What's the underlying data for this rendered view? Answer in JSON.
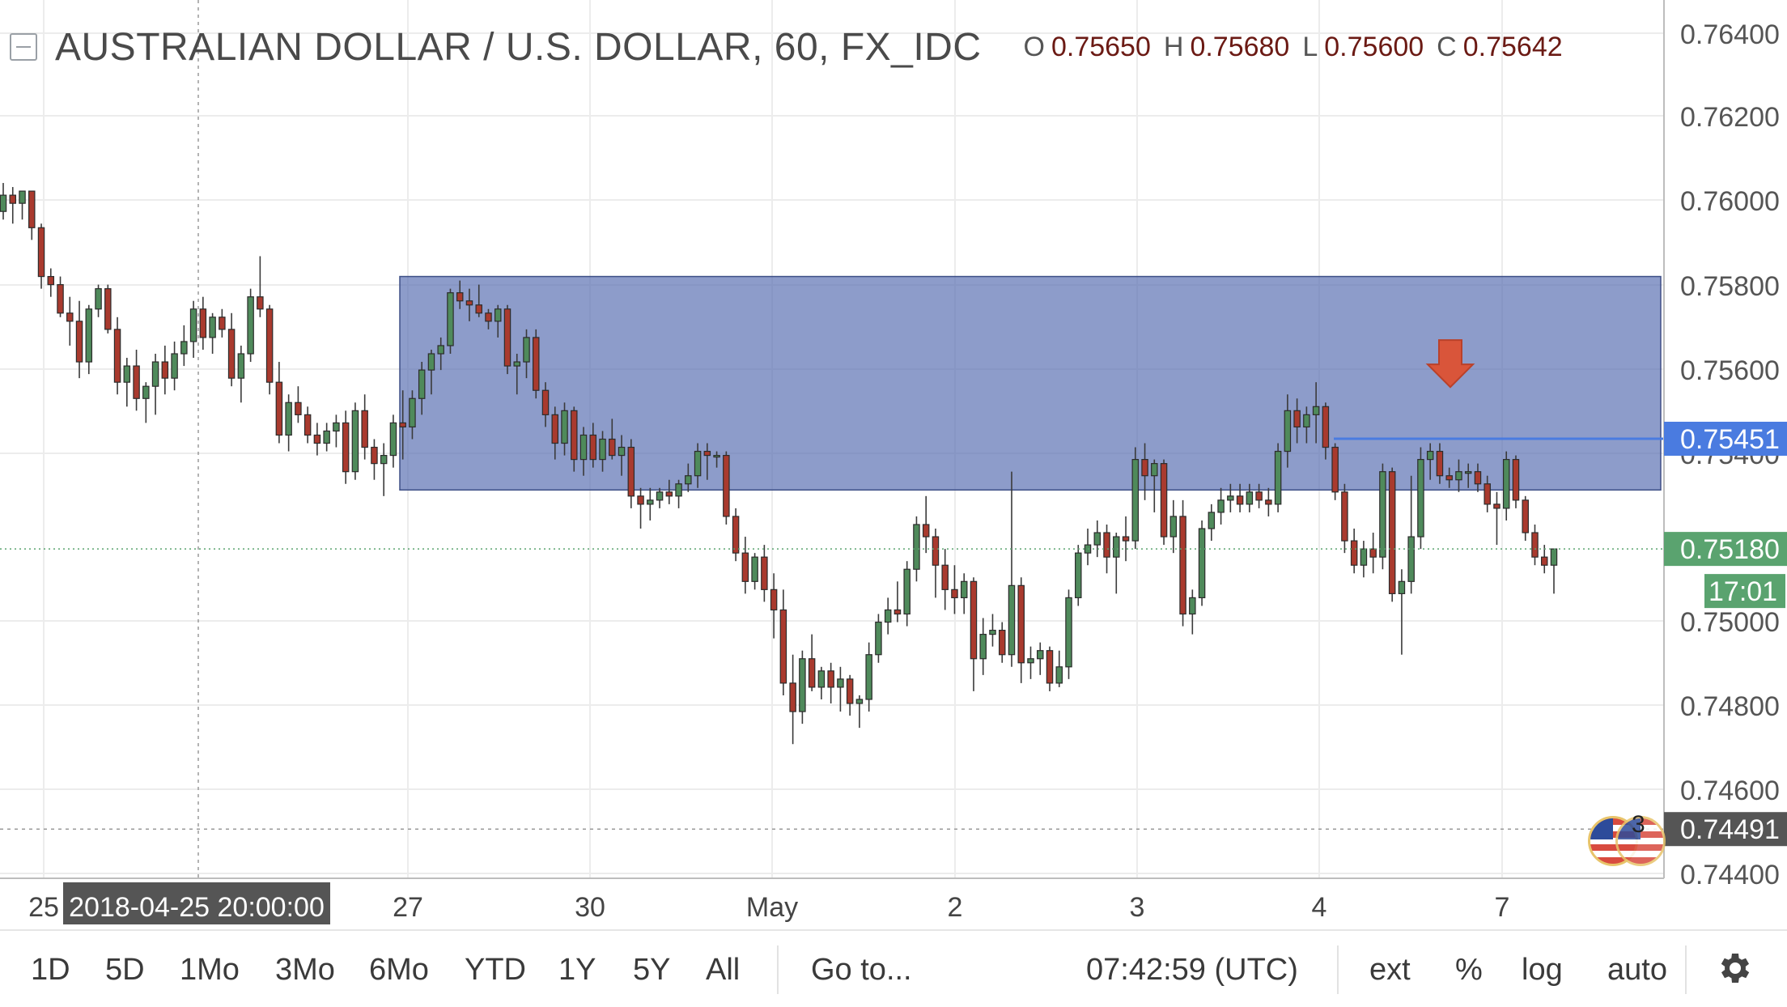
{
  "header": {
    "symbol_title": "AUSTRALIAN DOLLAR / U.S. DOLLAR, 60, FX_IDC",
    "ohlc": [
      {
        "key": "O",
        "value": "0.75650"
      },
      {
        "key": "H",
        "value": "0.75680"
      },
      {
        "key": "L",
        "value": "0.75600"
      },
      {
        "key": "C",
        "value": "0.75642"
      }
    ]
  },
  "chart_data": {
    "type": "candlestick",
    "title": "AUSTRALIAN DOLLAR / U.S. DOLLAR, 60, FX_IDC",
    "interval": "60",
    "ylim": [
      0.7437,
      0.7653
    ],
    "y_ticks": [
      "0.76400",
      "0.76200",
      "0.76000",
      "0.75800",
      "0.75600",
      "0.75400",
      "0.75000",
      "0.74800",
      "0.74600",
      "0.74400"
    ],
    "x_ticks": [
      "25",
      "27",
      "30",
      "May",
      "2",
      "3",
      "4",
      "7"
    ],
    "crosshair_time_label": "2018-04-25 20:00:00",
    "price_labels": [
      {
        "text": "0.75451",
        "value": 0.75451,
        "kind": "horizontal-line",
        "color": "#4a7be0"
      },
      {
        "text": "0.75180",
        "value": 0.7518,
        "kind": "last-price",
        "color": "#5aa36f"
      },
      {
        "text": "17:01",
        "kind": "bar-countdown",
        "color": "#5aa36f"
      },
      {
        "text": "0.74491",
        "value": 0.74491,
        "kind": "crosshair-price",
        "color": "#555555"
      }
    ],
    "drawings": {
      "rectangle_zone": {
        "top": 0.7585,
        "bottom": 0.75325,
        "color": "#5c72b3"
      },
      "arrow": {
        "direction": "down",
        "color": "#d9553a",
        "near_value": 0.7559
      },
      "horizontal_line": {
        "value": 0.75451,
        "color": "#4a7be0"
      }
    },
    "series_description": "hourly candles, roughly 24 Apr to 7 May 2018",
    "candles": [
      [
        0.7601,
        0.7608,
        0.7599,
        0.7605
      ],
      [
        0.7605,
        0.7607,
        0.7598,
        0.7603
      ],
      [
        0.7603,
        0.7606,
        0.7599,
        0.7606
      ],
      [
        0.7606,
        0.7606,
        0.7594,
        0.7597
      ],
      [
        0.7597,
        0.7598,
        0.7582,
        0.7585
      ],
      [
        0.7585,
        0.7587,
        0.758,
        0.7583
      ],
      [
        0.7583,
        0.7585,
        0.7575,
        0.7576
      ],
      [
        0.7576,
        0.758,
        0.7568,
        0.7574
      ],
      [
        0.7574,
        0.7579,
        0.756,
        0.7564
      ],
      [
        0.7564,
        0.7578,
        0.7561,
        0.7577
      ],
      [
        0.7577,
        0.7583,
        0.7575,
        0.7582
      ],
      [
        0.7582,
        0.7583,
        0.7571,
        0.7572
      ],
      [
        0.7572,
        0.7575,
        0.7556,
        0.7559
      ],
      [
        0.7559,
        0.7565,
        0.7553,
        0.7563
      ],
      [
        0.7563,
        0.7567,
        0.7552,
        0.7555
      ],
      [
        0.7555,
        0.7559,
        0.7549,
        0.7558
      ],
      [
        0.7558,
        0.7566,
        0.7551,
        0.7564
      ],
      [
        0.7564,
        0.7568,
        0.7556,
        0.756
      ],
      [
        0.756,
        0.7569,
        0.7557,
        0.7566
      ],
      [
        0.7566,
        0.7573,
        0.7563,
        0.7569
      ],
      [
        0.7569,
        0.7579,
        0.7565,
        0.7577
      ],
      [
        0.7577,
        0.758,
        0.7567,
        0.757
      ],
      [
        0.757,
        0.7576,
        0.7566,
        0.7575
      ],
      [
        0.7575,
        0.7577,
        0.757,
        0.7572
      ],
      [
        0.7572,
        0.7576,
        0.7558,
        0.756
      ],
      [
        0.756,
        0.7568,
        0.7554,
        0.7566
      ],
      [
        0.7566,
        0.7582,
        0.7564,
        0.758
      ],
      [
        0.758,
        0.759,
        0.7575,
        0.7577
      ],
      [
        0.7577,
        0.7578,
        0.7556,
        0.7559
      ],
      [
        0.7559,
        0.7564,
        0.7544,
        0.7546
      ],
      [
        0.7546,
        0.7556,
        0.7542,
        0.7554
      ],
      [
        0.7554,
        0.7558,
        0.7549,
        0.7551
      ],
      [
        0.7551,
        0.7553,
        0.7544,
        0.7546
      ],
      [
        0.7546,
        0.7549,
        0.7541,
        0.7544
      ],
      [
        0.7544,
        0.7549,
        0.7542,
        0.7547
      ],
      [
        0.7547,
        0.7551,
        0.7543,
        0.7549
      ],
      [
        0.7549,
        0.7552,
        0.7534,
        0.7537
      ],
      [
        0.7537,
        0.7554,
        0.7535,
        0.7552
      ],
      [
        0.7552,
        0.7556,
        0.754,
        0.7543
      ],
      [
        0.7543,
        0.7545,
        0.7535,
        0.7539
      ],
      [
        0.7539,
        0.7544,
        0.7531,
        0.7541
      ],
      [
        0.7541,
        0.7551,
        0.7538,
        0.7549
      ],
      [
        0.7549,
        0.7557,
        0.754,
        0.7548
      ],
      [
        0.7548,
        0.7557,
        0.7545,
        0.7555
      ],
      [
        0.7555,
        0.7564,
        0.7551,
        0.7562
      ],
      [
        0.7562,
        0.7567,
        0.7556,
        0.7566
      ],
      [
        0.7566,
        0.757,
        0.7562,
        0.7568
      ],
      [
        0.7568,
        0.7582,
        0.7566,
        0.7581
      ],
      [
        0.7581,
        0.7584,
        0.7577,
        0.7579
      ],
      [
        0.7579,
        0.7582,
        0.7574,
        0.7578
      ],
      [
        0.7578,
        0.7583,
        0.7575,
        0.7576
      ],
      [
        0.7576,
        0.7577,
        0.7572,
        0.7574
      ],
      [
        0.7574,
        0.7578,
        0.757,
        0.7577
      ],
      [
        0.7577,
        0.7578,
        0.7561,
        0.7563
      ],
      [
        0.7563,
        0.7566,
        0.7556,
        0.7564
      ],
      [
        0.7564,
        0.7572,
        0.756,
        0.757
      ],
      [
        0.757,
        0.7572,
        0.7555,
        0.7557
      ],
      [
        0.7557,
        0.7559,
        0.7548,
        0.7551
      ],
      [
        0.7551,
        0.7553,
        0.754,
        0.7544
      ],
      [
        0.7544,
        0.7554,
        0.7541,
        0.7552
      ],
      [
        0.7552,
        0.7553,
        0.7537,
        0.754
      ],
      [
        0.754,
        0.7548,
        0.7536,
        0.7546
      ],
      [
        0.7546,
        0.7549,
        0.7538,
        0.754
      ],
      [
        0.754,
        0.7547,
        0.7537,
        0.7545
      ],
      [
        0.7545,
        0.755,
        0.754,
        0.7541
      ],
      [
        0.7541,
        0.7546,
        0.7536,
        0.7543
      ],
      [
        0.7543,
        0.7545,
        0.7528,
        0.7531
      ],
      [
        0.7531,
        0.7533,
        0.7523,
        0.7529
      ],
      [
        0.7529,
        0.7533,
        0.7525,
        0.753
      ],
      [
        0.753,
        0.7533,
        0.7528,
        0.7532
      ],
      [
        0.7532,
        0.7535,
        0.7529,
        0.7531
      ],
      [
        0.7531,
        0.7535,
        0.7528,
        0.7534
      ],
      [
        0.7534,
        0.7539,
        0.7532,
        0.7536
      ],
      [
        0.7536,
        0.7544,
        0.7533,
        0.7542
      ],
      [
        0.7542,
        0.7544,
        0.7535,
        0.7541
      ],
      [
        0.7541,
        0.7542,
        0.7538,
        0.7541
      ],
      [
        0.7541,
        0.7542,
        0.7524,
        0.7526
      ],
      [
        0.7526,
        0.7528,
        0.7515,
        0.7517
      ],
      [
        0.7517,
        0.7521,
        0.7507,
        0.751
      ],
      [
        0.751,
        0.7517,
        0.7508,
        0.7516
      ],
      [
        0.7516,
        0.7519,
        0.7505,
        0.7508
      ],
      [
        0.7508,
        0.7512,
        0.7496,
        0.7503
      ],
      [
        0.7503,
        0.7508,
        0.7482,
        0.7485
      ],
      [
        0.7485,
        0.7492,
        0.747,
        0.7478
      ],
      [
        0.7478,
        0.7493,
        0.7475,
        0.7491
      ],
      [
        0.7491,
        0.7497,
        0.7483,
        0.7484
      ],
      [
        0.7484,
        0.7489,
        0.7481,
        0.7488
      ],
      [
        0.7488,
        0.749,
        0.748,
        0.7484
      ],
      [
        0.7484,
        0.7489,
        0.7478,
        0.7486
      ],
      [
        0.7486,
        0.7487,
        0.7477,
        0.748
      ],
      [
        0.748,
        0.7482,
        0.7474,
        0.7481
      ],
      [
        0.7481,
        0.7495,
        0.7478,
        0.7492
      ],
      [
        0.7492,
        0.7502,
        0.749,
        0.75
      ],
      [
        0.75,
        0.7506,
        0.7497,
        0.7503
      ],
      [
        0.7503,
        0.751,
        0.75,
        0.7502
      ],
      [
        0.7502,
        0.7515,
        0.7499,
        0.7513
      ],
      [
        0.7513,
        0.7526,
        0.751,
        0.7524
      ],
      [
        0.7524,
        0.7531,
        0.7517,
        0.7521
      ],
      [
        0.7521,
        0.7523,
        0.7506,
        0.7514
      ],
      [
        0.7514,
        0.7518,
        0.7503,
        0.7508
      ],
      [
        0.7508,
        0.7514,
        0.7502,
        0.7506
      ],
      [
        0.7506,
        0.7512,
        0.7502,
        0.751
      ],
      [
        0.751,
        0.7511,
        0.7483,
        0.7491
      ],
      [
        0.7491,
        0.7501,
        0.7487,
        0.7497
      ],
      [
        0.7497,
        0.7502,
        0.7494,
        0.7498
      ],
      [
        0.7498,
        0.75,
        0.749,
        0.7492
      ],
      [
        0.7492,
        0.7537,
        0.7489,
        0.7509
      ],
      [
        0.7509,
        0.7511,
        0.7485,
        0.749
      ],
      [
        0.749,
        0.7494,
        0.7486,
        0.7491
      ],
      [
        0.7491,
        0.7495,
        0.7487,
        0.7493
      ],
      [
        0.7493,
        0.7494,
        0.7483,
        0.7485
      ],
      [
        0.7485,
        0.7493,
        0.7484,
        0.7489
      ],
      [
        0.7489,
        0.7508,
        0.7486,
        0.7506
      ],
      [
        0.7506,
        0.7519,
        0.7504,
        0.7517
      ],
      [
        0.7517,
        0.7523,
        0.7514,
        0.7519
      ],
      [
        0.7519,
        0.7525,
        0.7516,
        0.7522
      ],
      [
        0.7522,
        0.7524,
        0.7512,
        0.7516
      ],
      [
        0.7516,
        0.7522,
        0.7507,
        0.7521
      ],
      [
        0.7521,
        0.7526,
        0.7515,
        0.752
      ],
      [
        0.752,
        0.7543,
        0.7518,
        0.754
      ],
      [
        0.754,
        0.7544,
        0.753,
        0.7536
      ],
      [
        0.7536,
        0.754,
        0.7527,
        0.7539
      ],
      [
        0.7539,
        0.754,
        0.7519,
        0.7521
      ],
      [
        0.7521,
        0.753,
        0.7517,
        0.7526
      ],
      [
        0.7526,
        0.753,
        0.7499,
        0.7502
      ],
      [
        0.7502,
        0.7508,
        0.7497,
        0.7506
      ],
      [
        0.7506,
        0.7525,
        0.7504,
        0.7523
      ],
      [
        0.7523,
        0.7529,
        0.752,
        0.7527
      ],
      [
        0.7527,
        0.7533,
        0.7524,
        0.753
      ],
      [
        0.753,
        0.7534,
        0.7527,
        0.7531
      ],
      [
        0.7531,
        0.7534,
        0.7527,
        0.7529
      ],
      [
        0.7529,
        0.7534,
        0.7527,
        0.7532
      ],
      [
        0.7532,
        0.7534,
        0.7528,
        0.753
      ],
      [
        0.753,
        0.7533,
        0.7526,
        0.7529
      ],
      [
        0.7529,
        0.7544,
        0.7527,
        0.7542
      ],
      [
        0.7542,
        0.7556,
        0.7538,
        0.7552
      ],
      [
        0.7552,
        0.7555,
        0.7544,
        0.7548
      ],
      [
        0.7548,
        0.7553,
        0.7544,
        0.7551
      ],
      [
        0.7551,
        0.7559,
        0.7544,
        0.7553
      ],
      [
        0.7553,
        0.7554,
        0.754,
        0.7543
      ],
      [
        0.7543,
        0.7544,
        0.753,
        0.7532
      ],
      [
        0.7532,
        0.7534,
        0.7517,
        0.752
      ],
      [
        0.752,
        0.7523,
        0.7512,
        0.7514
      ],
      [
        0.7514,
        0.752,
        0.7511,
        0.7518
      ],
      [
        0.7518,
        0.7522,
        0.7512,
        0.7516
      ],
      [
        0.7516,
        0.7539,
        0.7513,
        0.7537
      ],
      [
        0.7537,
        0.7538,
        0.7505,
        0.7507
      ],
      [
        0.7507,
        0.7513,
        0.7492,
        0.751
      ],
      [
        0.751,
        0.7536,
        0.7507,
        0.7521
      ],
      [
        0.7521,
        0.7543,
        0.7518,
        0.754
      ],
      [
        0.754,
        0.7544,
        0.7535,
        0.7542
      ],
      [
        0.7542,
        0.7544,
        0.7534,
        0.7536
      ],
      [
        0.7536,
        0.7538,
        0.7533,
        0.7535
      ],
      [
        0.7535,
        0.754,
        0.7532,
        0.7537
      ],
      [
        0.7537,
        0.7539,
        0.7533,
        0.7537
      ],
      [
        0.7537,
        0.7539,
        0.7532,
        0.7534
      ],
      [
        0.7534,
        0.7536,
        0.7527,
        0.7529
      ],
      [
        0.7529,
        0.7532,
        0.7519,
        0.7528
      ],
      [
        0.7528,
        0.7542,
        0.7525,
        0.754
      ],
      [
        0.754,
        0.7541,
        0.7528,
        0.753
      ],
      [
        0.753,
        0.7531,
        0.752,
        0.7522
      ],
      [
        0.7522,
        0.7524,
        0.7514,
        0.7516
      ],
      [
        0.7516,
        0.7519,
        0.7512,
        0.7514
      ],
      [
        0.7514,
        0.7516,
        0.7507,
        0.7518
      ]
    ]
  },
  "bottombar": {
    "ranges": [
      "1D",
      "5D",
      "1Mo",
      "3Mo",
      "6Mo",
      "YTD",
      "1Y",
      "5Y",
      "All"
    ],
    "goto": "Go to...",
    "clock": "07:42:59 (UTC)",
    "toggles": [
      "ext",
      "%",
      "log",
      "auto"
    ],
    "settings_icon": "gear-icon"
  },
  "event_marker": {
    "icon": "us-flag-icon",
    "count": "3"
  },
  "colors": {
    "up": "#4f8a5b",
    "down": "#a93a2e",
    "zone": "#5c72b3",
    "line": "#4a7be0",
    "arrow": "#d9553a"
  }
}
